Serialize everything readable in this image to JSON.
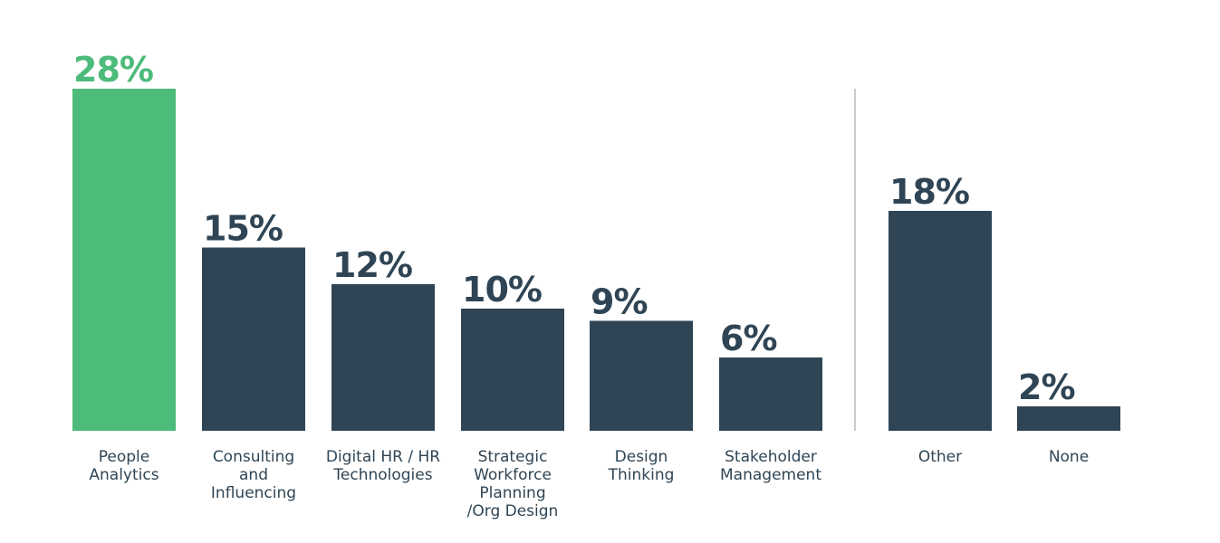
{
  "chart_data": {
    "type": "bar",
    "title": "",
    "xlabel": "",
    "ylabel": "",
    "ylim": [
      0,
      28
    ],
    "grid": false,
    "categories": [
      [
        "People",
        "Analytics"
      ],
      [
        "Consulting",
        "and",
        "Influencing"
      ],
      [
        "Digital HR / HR",
        "Technologies"
      ],
      [
        "Strategic",
        "Workforce",
        "Planning",
        "/Org Design"
      ],
      [
        "Design",
        "Thinking"
      ],
      [
        "Stakeholder",
        "Management"
      ],
      [
        "Other"
      ],
      [
        "None"
      ]
    ],
    "values": [
      28,
      15,
      12,
      10,
      9,
      6,
      18,
      2
    ],
    "value_labels": [
      "28%",
      "15%",
      "12%",
      "10%",
      "9%",
      "6%",
      "18%",
      "2%"
    ],
    "highlight_index": 0,
    "separator_after_index": 5,
    "colors": {
      "highlight": "#4dbb7a",
      "bar": "#2f4555",
      "category_text": "#2f4555",
      "separator": "#9a9a9a"
    }
  }
}
